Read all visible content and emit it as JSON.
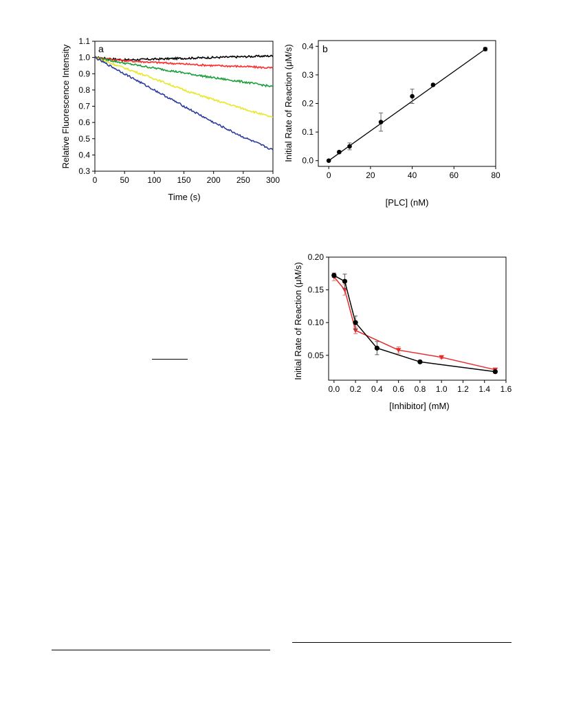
{
  "chart_data": [
    {
      "type": "line",
      "panel_label": "a",
      "xlabel": "Time (s)",
      "ylabel": "Relative Fluorescence Intensity",
      "xlim": [
        0,
        300
      ],
      "ylim": [
        0.3,
        1.1
      ],
      "xticks": [
        0,
        50,
        100,
        150,
        200,
        250,
        300
      ],
      "yticks": [
        0.3,
        0.4,
        0.5,
        0.6,
        0.7,
        0.8,
        0.9,
        1.0,
        1.1
      ],
      "legend": "none",
      "series": [
        {
          "color": "#000000",
          "x": [
            0,
            50,
            100,
            150,
            200,
            250,
            300
          ],
          "y": [
            1.0,
            0.985,
            0.99,
            0.995,
            1.0,
            1.005,
            1.01
          ]
        },
        {
          "color": "#ff2a2a",
          "x": [
            0,
            50,
            100,
            150,
            200,
            250,
            300
          ],
          "y": [
            1.0,
            0.98,
            0.97,
            0.96,
            0.95,
            0.945,
            0.935
          ]
        },
        {
          "color": "#1a9e3a",
          "x": [
            0,
            50,
            100,
            150,
            200,
            250,
            300
          ],
          "y": [
            1.0,
            0.965,
            0.935,
            0.905,
            0.875,
            0.85,
            0.82
          ]
        },
        {
          "color": "#e8e82a",
          "x": [
            0,
            50,
            100,
            150,
            200,
            250,
            300
          ],
          "y": [
            1.0,
            0.935,
            0.87,
            0.8,
            0.74,
            0.685,
            0.63
          ]
        },
        {
          "color": "#2b3a9e",
          "x": [
            0,
            50,
            100,
            150,
            200,
            250,
            300
          ],
          "y": [
            1.0,
            0.9,
            0.8,
            0.7,
            0.6,
            0.51,
            0.43
          ]
        }
      ]
    },
    {
      "type": "scatter",
      "panel_label": "b",
      "xlabel": "[PLC] (nM)",
      "ylabel": "Initial Rate of Reaction (μM/s)",
      "xlim": [
        -5,
        80
      ],
      "ylim": [
        -0.02,
        0.42
      ],
      "xticks": [
        0,
        20,
        40,
        60,
        80
      ],
      "yticks": [
        0.0,
        0.1,
        0.2,
        0.3,
        0.4
      ],
      "legend": "none",
      "fit_line": {
        "x": [
          0,
          75
        ],
        "y": [
          0.0,
          0.39
        ]
      },
      "series": [
        {
          "color": "#000000",
          "x": [
            0,
            5,
            10,
            25,
            40,
            50,
            75
          ],
          "y": [
            0.0,
            0.03,
            0.05,
            0.135,
            0.225,
            0.265,
            0.39
          ],
          "err": [
            0,
            0.004,
            0.012,
            0.032,
            0.025,
            0.004,
            0.006
          ]
        }
      ]
    },
    {
      "type": "line",
      "xlabel": "[Inhibitor] (mM)",
      "ylabel": "Initial Rate of Reaction (μM/s)",
      "xlim": [
        -0.05,
        1.6
      ],
      "ylim": [
        0.012,
        0.2
      ],
      "xticks": [
        0.0,
        0.2,
        0.4,
        0.6,
        0.8,
        1.0,
        1.2,
        1.4,
        1.6
      ],
      "yticks": [
        0.05,
        0.1,
        0.15,
        0.2
      ],
      "legend": "none",
      "series": [
        {
          "color": "#000000",
          "marker": "circle",
          "x": [
            0.0,
            0.1,
            0.2,
            0.4,
            0.8,
            1.5
          ],
          "y": [
            0.172,
            0.163,
            0.1,
            0.061,
            0.04,
            0.025
          ],
          "err": [
            0.003,
            0.011,
            0.01,
            0.01,
            0.002,
            0.002
          ]
        },
        {
          "color": "#e82a2a",
          "marker": "triangle-down",
          "x": [
            0.0,
            0.1,
            0.2,
            0.6,
            1.0,
            1.5
          ],
          "y": [
            0.17,
            0.15,
            0.088,
            0.058,
            0.047,
            0.028
          ],
          "err": [
            0.006,
            0.008,
            0.005,
            0.005,
            0.002,
            0.002
          ]
        }
      ]
    }
  ]
}
